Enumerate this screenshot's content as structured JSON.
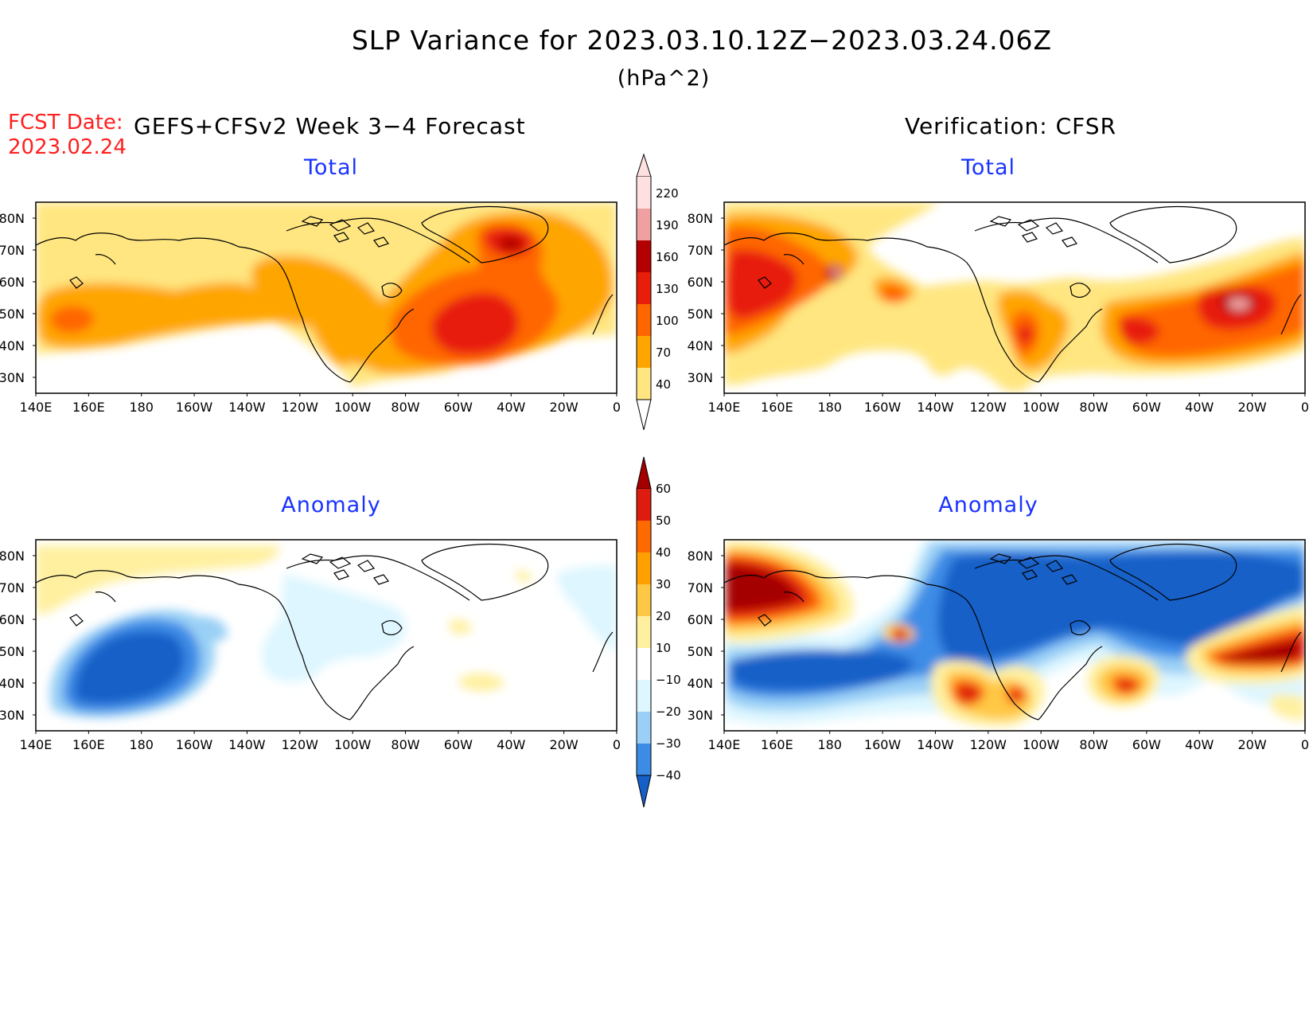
{
  "title": "SLP Variance for 2023.03.10.12Z−2023.03.24.06Z",
  "units": "(hPa^2)",
  "fcst_date_label": "FCST Date:",
  "fcst_date_value": "2023.02.24",
  "forecast_label": "GEFS+CFSv2 Week 3−4 Forecast",
  "verification_label": "Verification: CFSR",
  "panel_total_label": "Total",
  "panel_anomaly_label": "Anomaly",
  "lat_labels": [
    "80N",
    "70N",
    "60N",
    "50N",
    "40N",
    "30N"
  ],
  "lon_labels": [
    "140E",
    "160E",
    "180",
    "160W",
    "140W",
    "120W",
    "100W",
    "80W",
    "60W",
    "40W",
    "20W",
    "0"
  ],
  "total_colorbar": {
    "ticks": [
      "40",
      "70",
      "100",
      "130",
      "160",
      "190",
      "220"
    ],
    "colors": [
      "#ffffff",
      "#ffe680",
      "#ffa500",
      "#ff6600",
      "#e81e0a",
      "#b30000",
      "#f0a0a0",
      "#ffe0e0"
    ]
  },
  "anomaly_colorbar": {
    "ticks": [
      "60",
      "50",
      "40",
      "30",
      "20",
      "10",
      "−10",
      "−20",
      "−30",
      "−40"
    ],
    "colors": [
      "#a50000",
      "#dd1c0f",
      "#ff6a00",
      "#ffa000",
      "#ffc844",
      "#fff0a0",
      "#ffffff",
      "#ddf6ff",
      "#9ad0f6",
      "#3c8ce6",
      "#1460c8"
    ]
  },
  "field_colors": {
    "c40": "#ffe680",
    "c70": "#ffa500",
    "c100": "#ff6600",
    "c130": "#e81e0a",
    "c160": "#b30000",
    "c190": "#f0a0a0",
    "c220": "#ffe0e0",
    "p10": "#fff0a0",
    "p20": "#ffc844",
    "p30": "#ffa000",
    "p40": "#ff6a00",
    "p50": "#dd1c0f",
    "p60": "#a50000",
    "m10": "#ddf6ff",
    "m20": "#9ad0f6",
    "m30": "#3c8ce6",
    "m40": "#1460c8",
    "label_blue": "#1a33ff",
    "label_red": "#ff2020"
  }
}
